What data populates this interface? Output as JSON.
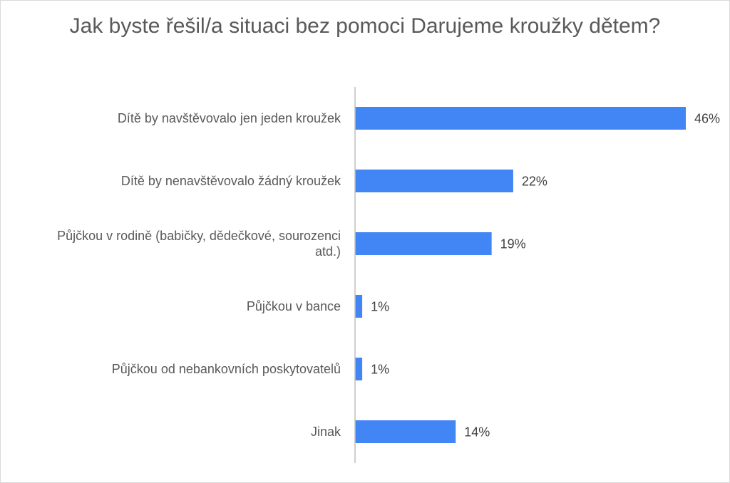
{
  "chart_data": {
    "type": "bar",
    "orientation": "horizontal",
    "title": "Jak byste řešil/a situaci bez pomoci Darujeme kroužky dětem?",
    "categories": [
      [
        "Dítě by navštěvovalo jen jeden kroužek"
      ],
      [
        "Dítě by nenavštěvovalo žádný kroužek"
      ],
      [
        "Půjčkou v rodině (babičky, dědečkové, sourozenci",
        "atd.)"
      ],
      [
        "Půjčkou v bance"
      ],
      [
        "Půjčkou od nebankovních poskytovatelů"
      ],
      [
        "Jinak"
      ]
    ],
    "values": [
      46,
      22,
      19,
      1,
      1,
      14
    ],
    "value_labels": [
      "46%",
      "22%",
      "19%",
      "1%",
      "1%",
      "14%"
    ],
    "unit": "%",
    "xlim": [
      0,
      46
    ],
    "grid": false,
    "legend": "none",
    "bar_color": "#4285f4",
    "axis_color": "#bfbfbf",
    "text_color": "#595959",
    "label_color": "#404040"
  }
}
